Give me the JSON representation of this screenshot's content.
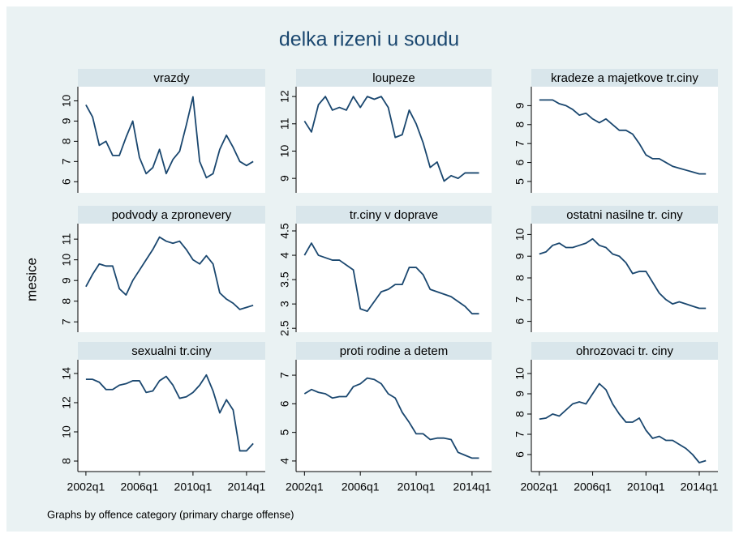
{
  "chart_data": {
    "type": "line",
    "title": "delka rizeni u soudu",
    "y_label": "mesice",
    "note": "Graphs by offence category (primary charge offense)",
    "color": "#1a476f",
    "x": [
      2002,
      2002.5,
      2003,
      2003.5,
      2004,
      2004.5,
      2005,
      2005.5,
      2006,
      2006.5,
      2007,
      2007.5,
      2008,
      2008.5,
      2009,
      2009.5,
      2010,
      2010.5,
      2011,
      2011.5,
      2012,
      2012.5,
      2013,
      2013.5,
      2014,
      2014.5
    ],
    "xlim": [
      2001.4,
      2015.4
    ],
    "xticks": [
      {
        "value": 2002,
        "label": "2002q1"
      },
      {
        "value": 2006,
        "label": "2006q1"
      },
      {
        "value": 2010,
        "label": "2010q1"
      },
      {
        "value": 2014,
        "label": "2014q1"
      }
    ],
    "panels": [
      {
        "name": "vrazdy",
        "ylim": [
          5.45,
          10.7
        ],
        "yticks": [
          6,
          7,
          8,
          9,
          10
        ],
        "values": [
          9.8,
          9.2,
          7.8,
          8.0,
          7.3,
          7.3,
          8.2,
          9.0,
          7.2,
          6.4,
          6.7,
          7.6,
          6.4,
          7.1,
          7.5,
          8.8,
          10.2,
          7.0,
          6.2,
          6.4,
          7.6,
          8.3,
          7.7,
          7.0,
          6.8,
          7.0
        ]
      },
      {
        "name": "loupeze",
        "ylim": [
          8.47,
          12.36
        ],
        "yticks": [
          9,
          10,
          11,
          12
        ],
        "values": [
          11.1,
          10.7,
          11.7,
          12.0,
          11.5,
          11.6,
          11.5,
          12.0,
          11.6,
          12.0,
          11.9,
          12.0,
          11.6,
          10.5,
          10.6,
          11.5,
          11.0,
          10.3,
          9.4,
          9.6,
          8.9,
          9.1,
          9.0,
          9.2,
          9.2,
          9.2
        ]
      },
      {
        "name": "kradeze a majetkove tr.ciny",
        "ylim": [
          4.4,
          10.0
        ],
        "yticks": [
          5,
          6,
          7,
          8,
          9
        ],
        "values": [
          9.3,
          9.3,
          9.3,
          9.1,
          9.0,
          8.8,
          8.5,
          8.6,
          8.3,
          8.1,
          8.3,
          8.0,
          7.7,
          7.7,
          7.5,
          7.0,
          6.4,
          6.2,
          6.2,
          6.0,
          5.8,
          5.7,
          5.6,
          5.5,
          5.4,
          5.4
        ]
      },
      {
        "name": "podvody a zpronevery",
        "ylim": [
          6.5,
          11.75
        ],
        "yticks": [
          7,
          8,
          9,
          10,
          11
        ],
        "values": [
          8.7,
          9.3,
          9.8,
          9.7,
          9.7,
          8.6,
          8.3,
          9.0,
          9.5,
          10.0,
          10.5,
          11.1,
          10.9,
          10.8,
          10.9,
          10.5,
          10.0,
          9.8,
          10.2,
          9.8,
          8.4,
          8.1,
          7.9,
          7.6,
          7.7,
          7.8
        ]
      },
      {
        "name": "tr.ciny v doprave",
        "ylim": [
          2.42,
          4.65
        ],
        "yticks": [
          2.5,
          3,
          3.5,
          4,
          4.5
        ],
        "values": [
          4.0,
          4.25,
          4.0,
          3.95,
          3.9,
          3.9,
          3.8,
          3.7,
          2.9,
          2.85,
          3.05,
          3.25,
          3.3,
          3.4,
          3.4,
          3.75,
          3.75,
          3.6,
          3.3,
          3.25,
          3.2,
          3.15,
          3.05,
          2.95,
          2.8,
          2.8
        ]
      },
      {
        "name": "ostatni nasilne tr. ciny",
        "ylim": [
          5.5,
          10.5
        ],
        "yticks": [
          6,
          7,
          8,
          9,
          10
        ],
        "values": [
          9.1,
          9.2,
          9.5,
          9.6,
          9.4,
          9.4,
          9.5,
          9.6,
          9.8,
          9.5,
          9.4,
          9.1,
          9.0,
          8.7,
          8.2,
          8.3,
          8.3,
          7.8,
          7.3,
          7.0,
          6.8,
          6.9,
          6.8,
          6.7,
          6.6,
          6.6
        ]
      },
      {
        "name": "sexualni tr.ciny",
        "ylim": [
          7.28,
          14.94
        ],
        "yticks": [
          8,
          10,
          12,
          14
        ],
        "values": [
          13.6,
          13.6,
          13.4,
          12.9,
          12.9,
          13.2,
          13.3,
          13.5,
          13.5,
          12.7,
          12.8,
          13.5,
          13.8,
          13.2,
          12.3,
          12.4,
          12.7,
          13.2,
          13.9,
          12.8,
          11.3,
          12.2,
          11.5,
          8.7,
          8.7,
          9.2
        ]
      },
      {
        "name": "proti rodine a detem",
        "ylim": [
          3.63,
          7.54
        ],
        "yticks": [
          4,
          5,
          6,
          7
        ],
        "values": [
          6.35,
          6.5,
          6.4,
          6.35,
          6.2,
          6.25,
          6.25,
          6.6,
          6.7,
          6.9,
          6.85,
          6.7,
          6.35,
          6.2,
          5.7,
          5.35,
          4.95,
          4.95,
          4.75,
          4.8,
          4.8,
          4.75,
          4.3,
          4.2,
          4.1,
          4.1
        ]
      },
      {
        "name": "ohrozovaci tr. ciny",
        "ylim": [
          5.16,
          10.68
        ],
        "yticks": [
          6,
          7,
          8,
          9,
          10
        ],
        "values": [
          7.75,
          7.8,
          8.0,
          7.9,
          8.2,
          8.5,
          8.6,
          8.5,
          9.0,
          9.5,
          9.2,
          8.5,
          8.0,
          7.6,
          7.6,
          7.8,
          7.2,
          6.8,
          6.9,
          6.7,
          6.7,
          6.5,
          6.3,
          6.0,
          5.6,
          5.7
        ]
      }
    ]
  }
}
